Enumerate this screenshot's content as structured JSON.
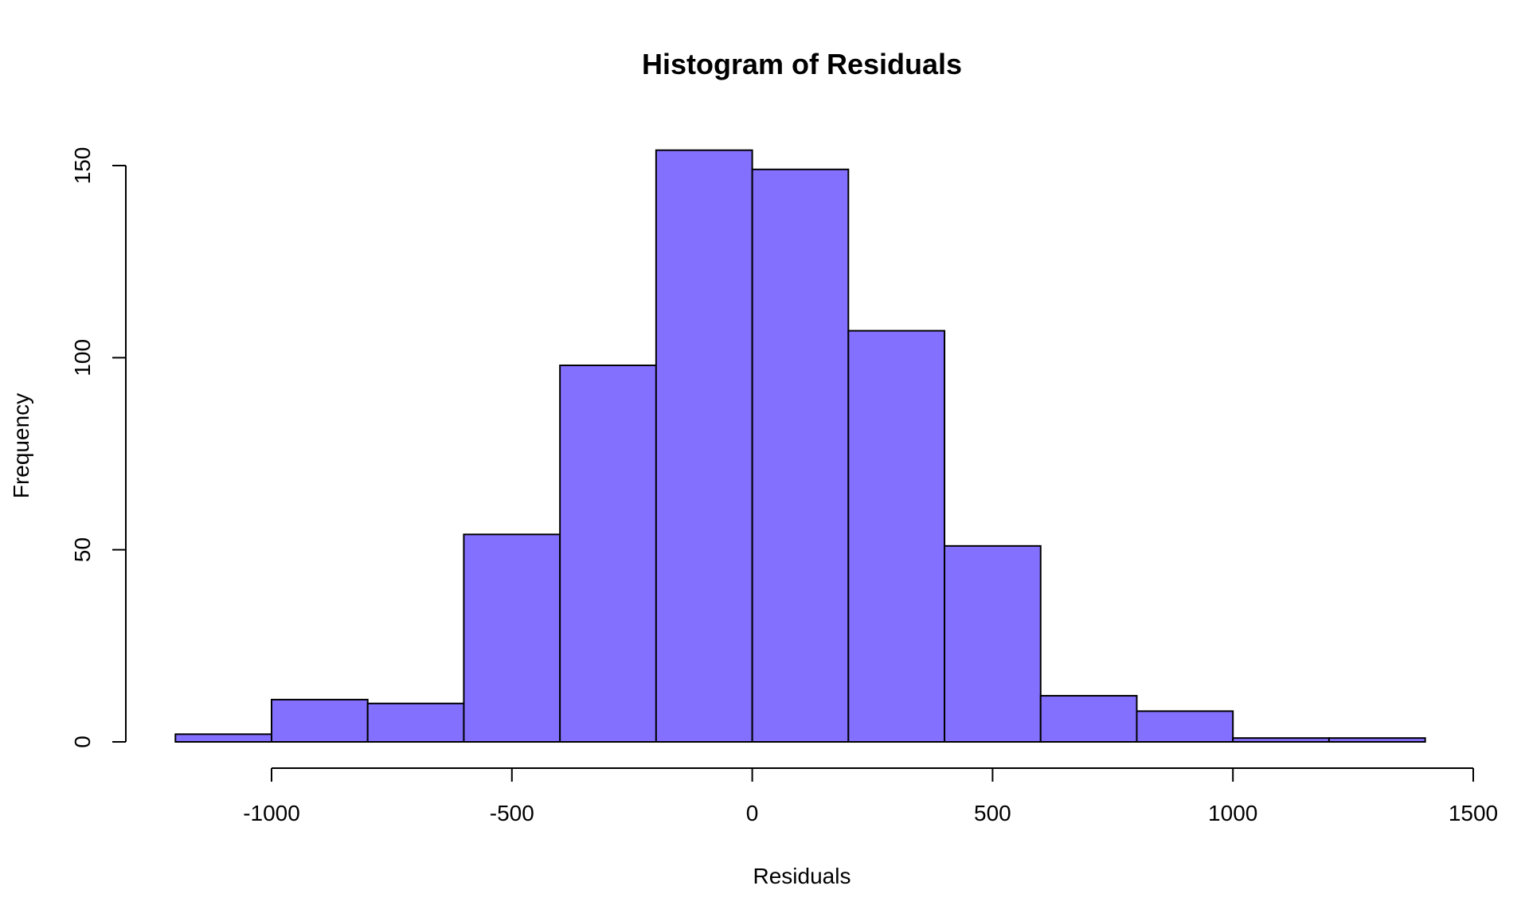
{
  "chart_data": {
    "type": "bar",
    "title": "Histogram of Residuals",
    "xlabel": "Residuals",
    "ylabel": "Frequency",
    "bar_color": "#8470FF",
    "bin_edges": [
      -1200,
      -1000,
      -800,
      -600,
      -400,
      -200,
      0,
      200,
      400,
      600,
      800,
      1000,
      1200,
      1400
    ],
    "values": [
      2,
      11,
      10,
      54,
      98,
      154,
      149,
      107,
      51,
      12,
      8,
      1,
      1
    ],
    "xlim": [
      -1200,
      1500
    ],
    "ylim": [
      0,
      160
    ],
    "x_ticks": [
      -1000,
      -500,
      0,
      500,
      1000,
      1500
    ],
    "x_tick_labels": [
      "-1000",
      "-500",
      "0",
      "500",
      "1000",
      "1500"
    ],
    "y_ticks": [
      0,
      50,
      100,
      150
    ],
    "y_tick_labels": [
      "0",
      "50",
      "100",
      "150"
    ],
    "grid": false,
    "legend": "none"
  }
}
